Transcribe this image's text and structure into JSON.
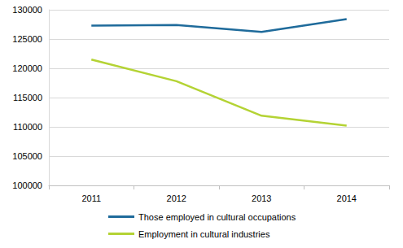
{
  "chart_data": {
    "type": "line",
    "categories": [
      "2011",
      "2012",
      "2013",
      "2014"
    ],
    "series": [
      {
        "name": "Those employed in cultural occupations",
        "color": "#1f6b9b",
        "values": [
          127300,
          127400,
          126200,
          128400
        ]
      },
      {
        "name": "Employment in cultural industries",
        "color": "#b4d334",
        "values": [
          121500,
          117800,
          111900,
          110200
        ]
      }
    ],
    "ylim": [
      100000,
      130000
    ],
    "yticks": [
      100000,
      105000,
      110000,
      115000,
      120000,
      125000,
      130000
    ],
    "grid": true,
    "legend": "bottom"
  }
}
